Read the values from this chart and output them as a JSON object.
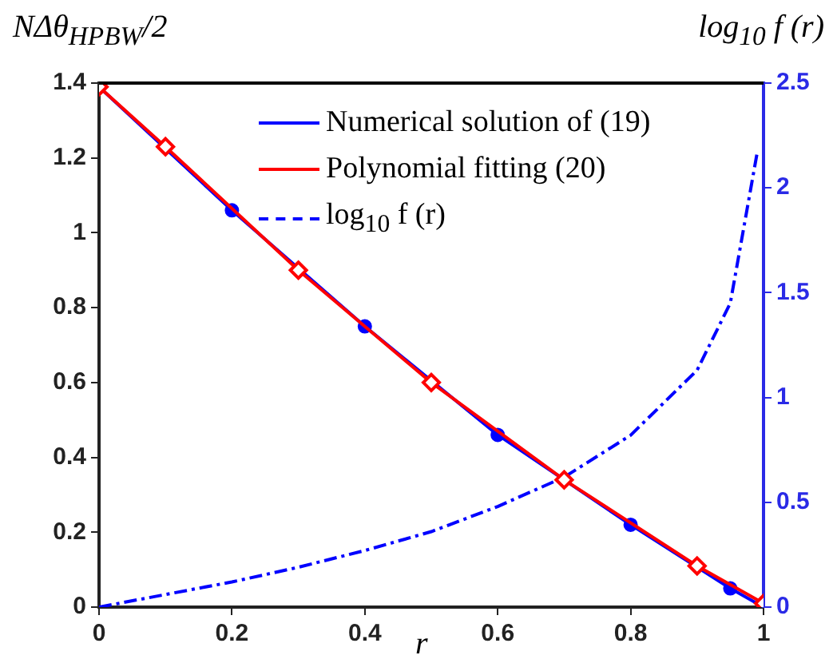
{
  "chart_data": {
    "type": "line",
    "xlabel": "r",
    "ylabel": "NΔθ$_{HPBW}$/2",
    "y2label": "log$_{10}$ f (r)",
    "xlim": [
      0,
      1
    ],
    "xticks": [
      0,
      0.2,
      0.4,
      0.6,
      0.8,
      1
    ],
    "ylim": [
      0,
      1.4
    ],
    "yticks": [
      0,
      0.2,
      0.4,
      0.6,
      0.8,
      1,
      1.2,
      1.4
    ],
    "y2lim": [
      0,
      2.5
    ],
    "y2ticks": [
      0,
      0.5,
      1,
      1.5,
      2,
      2.5
    ],
    "grid": false,
    "legend": "top right",
    "series": [
      {
        "name": "Numerical solution of (19)",
        "color": "#0000ff",
        "marker": "circle",
        "line_style": "solid",
        "x": [
          0,
          0.2,
          0.4,
          0.6,
          0.8,
          0.95,
          1
        ],
        "values": [
          1.39,
          1.06,
          0.75,
          0.46,
          0.22,
          0.05,
          0.0
        ]
      },
      {
        "name": "Polynomial fitting (20)",
        "color": "#ff0000",
        "marker": "diamond",
        "line_style": "solid",
        "x": [
          0,
          0.1,
          0.3,
          0.5,
          0.7,
          0.9,
          1
        ],
        "values": [
          1.39,
          1.23,
          0.9,
          0.6,
          0.34,
          0.11,
          0.01
        ]
      },
      {
        "name": "log$_{10}$ f (r)",
        "color": "#0000ff",
        "marker": "none",
        "line_style": "dashdot",
        "axis": "y2",
        "x": [
          0,
          0.1,
          0.2,
          0.3,
          0.4,
          0.5,
          0.6,
          0.7,
          0.8,
          0.9,
          0.95,
          0.99
        ],
        "values": [
          0,
          0.06,
          0.12,
          0.19,
          0.27,
          0.36,
          0.48,
          0.62,
          0.82,
          1.13,
          1.45,
          2.16
        ]
      }
    ]
  }
}
